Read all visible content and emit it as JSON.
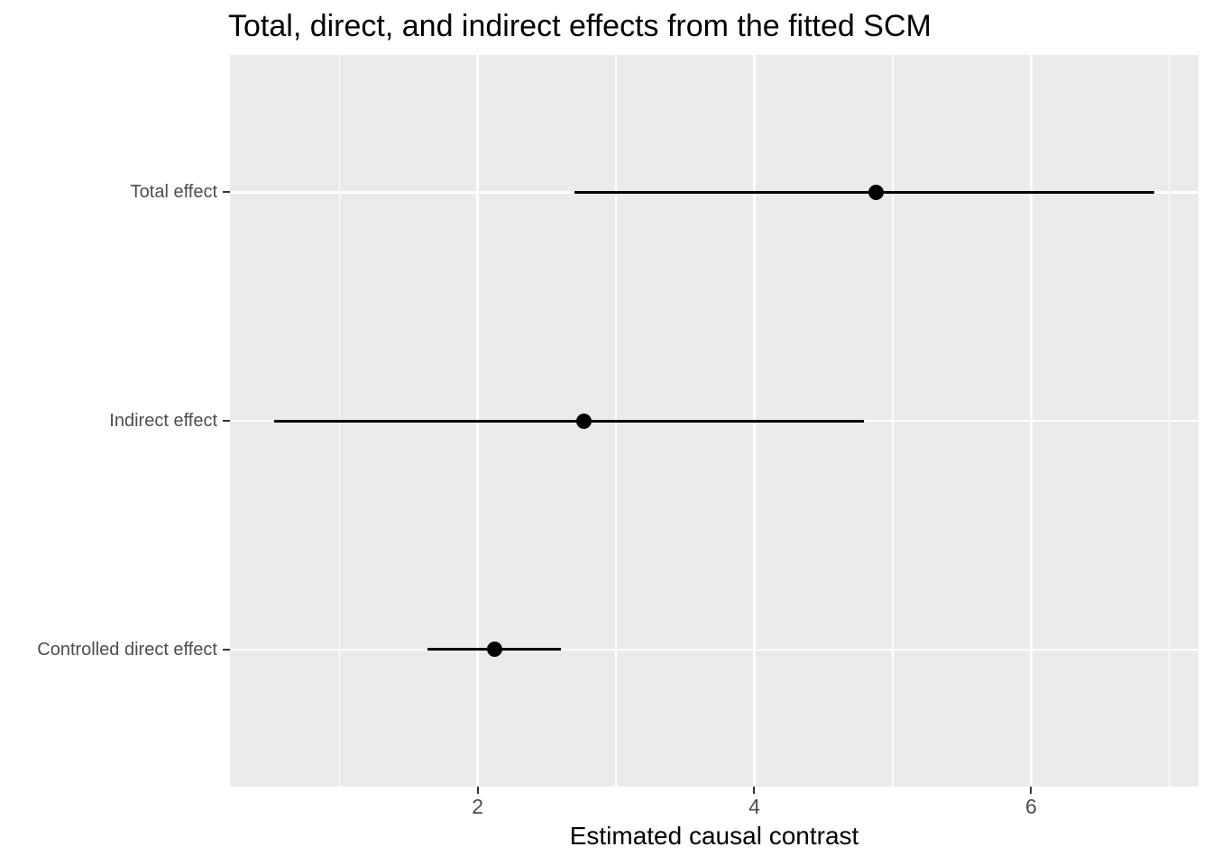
{
  "chart_data": {
    "type": "scatter",
    "subtype": "horizontal-pointrange",
    "title": "Total, direct, and indirect effects from the fitted SCM",
    "xlabel": "Estimated causal contrast",
    "ylabel": "",
    "categories": [
      "Total effect",
      "Indirect effect",
      "Controlled direct effect"
    ],
    "series": [
      {
        "name": "estimate",
        "values": [
          4.88,
          2.77,
          2.12
        ]
      },
      {
        "name": "ci_lower",
        "values": [
          2.7,
          0.53,
          1.64
        ]
      },
      {
        "name": "ci_upper",
        "values": [
          6.89,
          4.79,
          2.6
        ]
      }
    ],
    "xlim": [
      0.21,
      7.21
    ],
    "x_ticks": [
      2,
      4,
      6
    ],
    "x_tick_labels": [
      "2",
      "4",
      "6"
    ],
    "x_minor_gridlines": [
      1,
      3,
      5,
      7
    ],
    "grid": true,
    "legend_position": "none",
    "colors": {
      "panel_background": "#EBEBEB",
      "gridline": "#FFFFFF",
      "point": "#000000",
      "range_line": "#000000",
      "axis_text": "#4D4D4D",
      "tick_mark": "#333333",
      "title_text": "#000000",
      "page_background": "#FFFFFF"
    }
  }
}
